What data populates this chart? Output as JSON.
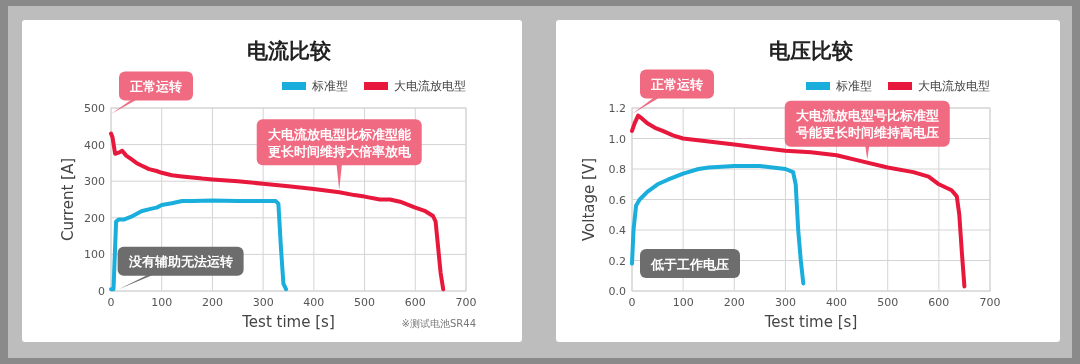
{
  "chart_data": [
    {
      "type": "line",
      "title": "电流比较",
      "xlabel": "Test time [s]",
      "ylabel": "Current [A]",
      "xlim": [
        0,
        700
      ],
      "xticks": [
        0,
        100,
        200,
        300,
        400,
        500,
        600,
        700
      ],
      "ylim": [
        0,
        500
      ],
      "yticks": [
        0,
        100,
        200,
        300,
        400,
        500
      ],
      "grid": true,
      "legend": "top right",
      "marker": "none",
      "line_style": "solid",
      "series": [
        {
          "name": "标准型",
          "color": "#1aaedc",
          "x": [
            0,
            5,
            10,
            15,
            25,
            40,
            60,
            80,
            90,
            100,
            120,
            140,
            160,
            200,
            250,
            300,
            325,
            330,
            335,
            340,
            345
          ],
          "values": [
            5,
            5,
            190,
            195,
            195,
            203,
            218,
            225,
            228,
            235,
            240,
            246,
            246,
            247,
            246,
            246,
            246,
            238,
            120,
            20,
            5
          ]
        },
        {
          "name": "大电流放电型",
          "color": "#e8173c",
          "x": [
            0,
            3,
            8,
            15,
            22,
            30,
            40,
            50,
            60,
            75,
            90,
            100,
            120,
            140,
            160,
            180,
            200,
            250,
            300,
            350,
            400,
            450,
            480,
            500,
            530,
            550,
            570,
            600,
            620,
            635,
            640,
            645,
            650,
            655
          ],
          "values": [
            430,
            420,
            375,
            378,
            383,
            370,
            360,
            350,
            343,
            333,
            328,
            323,
            316,
            313,
            310,
            307,
            305,
            300,
            293,
            286,
            279,
            270,
            262,
            258,
            250,
            250,
            244,
            228,
            218,
            205,
            190,
            120,
            50,
            5
          ]
        }
      ],
      "annotations": [
        "正常运转",
        {
          "text": "大电流放电型比标准型能更长时间维持大倍率放电",
          "x": 450,
          "y": 275
        },
        {
          "text": "没有辅助无法运转",
          "x": 15,
          "y": 5
        },
        "※测试电池SR44"
      ]
    },
    {
      "type": "line",
      "title": "电压比较",
      "xlabel": "Test time [s]",
      "ylabel": "Voltage [V]",
      "xlim": [
        0,
        700
      ],
      "xticks": [
        0,
        100,
        200,
        300,
        400,
        500,
        600,
        700
      ],
      "ylim": [
        0,
        1.2
      ],
      "yticks": [
        {
          "value": 0,
          "label": "0.0"
        },
        0.2,
        0.4,
        0.6,
        0.8,
        {
          "value": 1,
          "label": "1.0"
        },
        1.2
      ],
      "grid": true,
      "legend": "top right",
      "marker": "none",
      "line_style": "solid",
      "series": [
        {
          "name": "标准型",
          "color": "#1aaedc",
          "x": [
            0,
            3,
            8,
            15,
            30,
            50,
            70,
            100,
            130,
            150,
            200,
            250,
            300,
            315,
            320,
            325,
            330,
            335
          ],
          "values": [
            0.18,
            0.4,
            0.56,
            0.6,
            0.65,
            0.7,
            0.73,
            0.77,
            0.8,
            0.81,
            0.82,
            0.82,
            0.8,
            0.78,
            0.7,
            0.4,
            0.2,
            0.05
          ]
        },
        {
          "name": "大电流放电型",
          "color": "#e8173c",
          "x": [
            0,
            5,
            12,
            20,
            30,
            45,
            60,
            80,
            100,
            150,
            200,
            250,
            300,
            350,
            400,
            450,
            500,
            550,
            580,
            600,
            625,
            635,
            640,
            645,
            650
          ],
          "values": [
            1.05,
            1.1,
            1.15,
            1.13,
            1.1,
            1.07,
            1.05,
            1.02,
            1.0,
            0.98,
            0.96,
            0.94,
            0.92,
            0.91,
            0.89,
            0.85,
            0.81,
            0.78,
            0.75,
            0.7,
            0.66,
            0.62,
            0.5,
            0.25,
            0.03
          ]
        }
      ],
      "annotations": [
        "正常运转",
        {
          "text": "大电流放电型号比标准型号能更长时间维持高电压",
          "x": 460,
          "y": 0.86
        },
        {
          "text": "低于工作电压",
          "x": 0,
          "y": 0.18
        }
      ]
    }
  ]
}
